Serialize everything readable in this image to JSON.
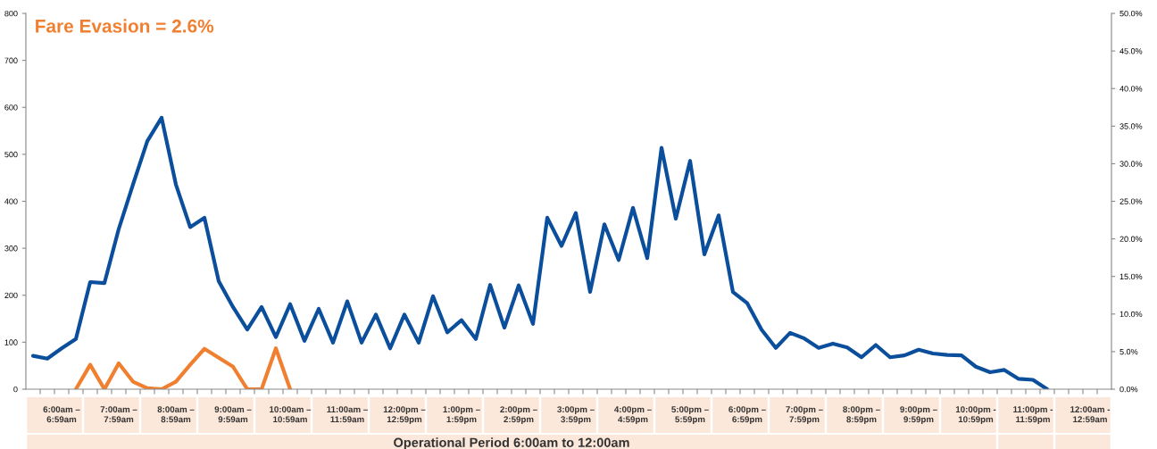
{
  "chart_data": {
    "type": "line",
    "title": "Fare Evasion = 2.6%",
    "xlabel": "Operational Period 6:00am to 12:00am",
    "categories": [
      null,
      null,
      "6:00am –\n6:59am",
      null,
      null,
      null,
      "7:00am –\n7:59am",
      null,
      null,
      null,
      "8:00am –\n8:59am",
      null,
      null,
      null,
      "9:00am –\n9:59am",
      null,
      null,
      null,
      "10:00am –\n10:59am",
      null,
      null,
      null,
      "11:00am –\n11:59am",
      null,
      null,
      null,
      "12:00pm –\n12:59pm",
      null,
      null,
      null,
      "1:00pm –\n1:59pm",
      null,
      null,
      null,
      "2:00pm –\n2:59pm",
      null,
      null,
      null,
      "3:00pm –\n3:59pm",
      null,
      null,
      null,
      "4:00pm –\n4:59pm",
      null,
      null,
      null,
      "5:00pm –\n5:59pm",
      null,
      null,
      null,
      "6:00pm –\n6:59pm",
      null,
      null,
      null,
      "7:00pm –\n7:59pm",
      null,
      null,
      null,
      "8:00pm –\n8:59pm",
      null,
      null,
      null,
      "9:00pm –\n9:59pm",
      null,
      null,
      null,
      "10:00pm -\n10:59pm",
      null,
      null,
      null,
      "11:00pm -\n11:59pm",
      null,
      null,
      null,
      "12:00am -\n12:59am",
      null
    ],
    "series": [
      {
        "color": "#0b4f9c",
        "values": [
          71,
          65,
          87,
          107,
          228,
          226,
          341,
          436,
          528,
          578,
          436,
          345,
          365,
          230,
          175,
          127,
          175,
          111,
          181,
          103,
          171,
          99,
          187,
          99,
          159,
          87,
          159,
          99,
          198,
          121,
          147,
          107,
          222,
          131,
          221,
          139,
          365,
          305,
          375,
          207,
          351,
          275,
          386,
          279,
          514,
          363,
          486,
          287,
          370,
          207,
          183,
          127,
          88,
          120,
          108,
          88,
          97,
          89,
          68,
          94,
          68,
          72,
          84,
          76,
          73,
          72,
          48,
          36,
          41,
          22,
          20,
          0,
          null,
          null,
          null,
          null
        ]
      },
      {
        "color": "#f07f30",
        "values": [
          null,
          null,
          null,
          0,
          52,
          0,
          55,
          16,
          2,
          0,
          16,
          52,
          86,
          67,
          48,
          0,
          0,
          87,
          0,
          null,
          null,
          null,
          null,
          null,
          null,
          null,
          null,
          null,
          null,
          null,
          null,
          null,
          null,
          null,
          null,
          null,
          null,
          null,
          null,
          null,
          null,
          null,
          null,
          null,
          null,
          null,
          null,
          null,
          null,
          null,
          null,
          null,
          null,
          null,
          null,
          null,
          null,
          null,
          null,
          null,
          null,
          null,
          null,
          null,
          null,
          null,
          null,
          null,
          null,
          null,
          null,
          null,
          null,
          null,
          null,
          null
        ]
      }
    ],
    "ylim": [
      0,
      800
    ],
    "yticks": [
      0,
      100,
      200,
      300,
      400,
      500,
      600,
      700,
      800
    ],
    "y2lim": [
      0,
      50
    ],
    "y2ticks": [
      {
        "value": 0,
        "label": "0.0%"
      },
      {
        "value": 5,
        "label": "5.0%"
      },
      {
        "value": 10,
        "label": "10.0%"
      },
      {
        "value": 15,
        "label": "15.0%"
      },
      {
        "value": 20,
        "label": "20.0%"
      },
      {
        "value": 25,
        "label": "25.0%"
      },
      {
        "value": 30,
        "label": "30.0%"
      },
      {
        "value": 35,
        "label": "35.0%"
      },
      {
        "value": 40,
        "label": "40.0%"
      },
      {
        "value": 45,
        "label": "45.0%"
      },
      {
        "value": 50,
        "label": "50.0%"
      }
    ],
    "grid": false,
    "legend": false,
    "marker": "none",
    "line_style": "solid"
  }
}
